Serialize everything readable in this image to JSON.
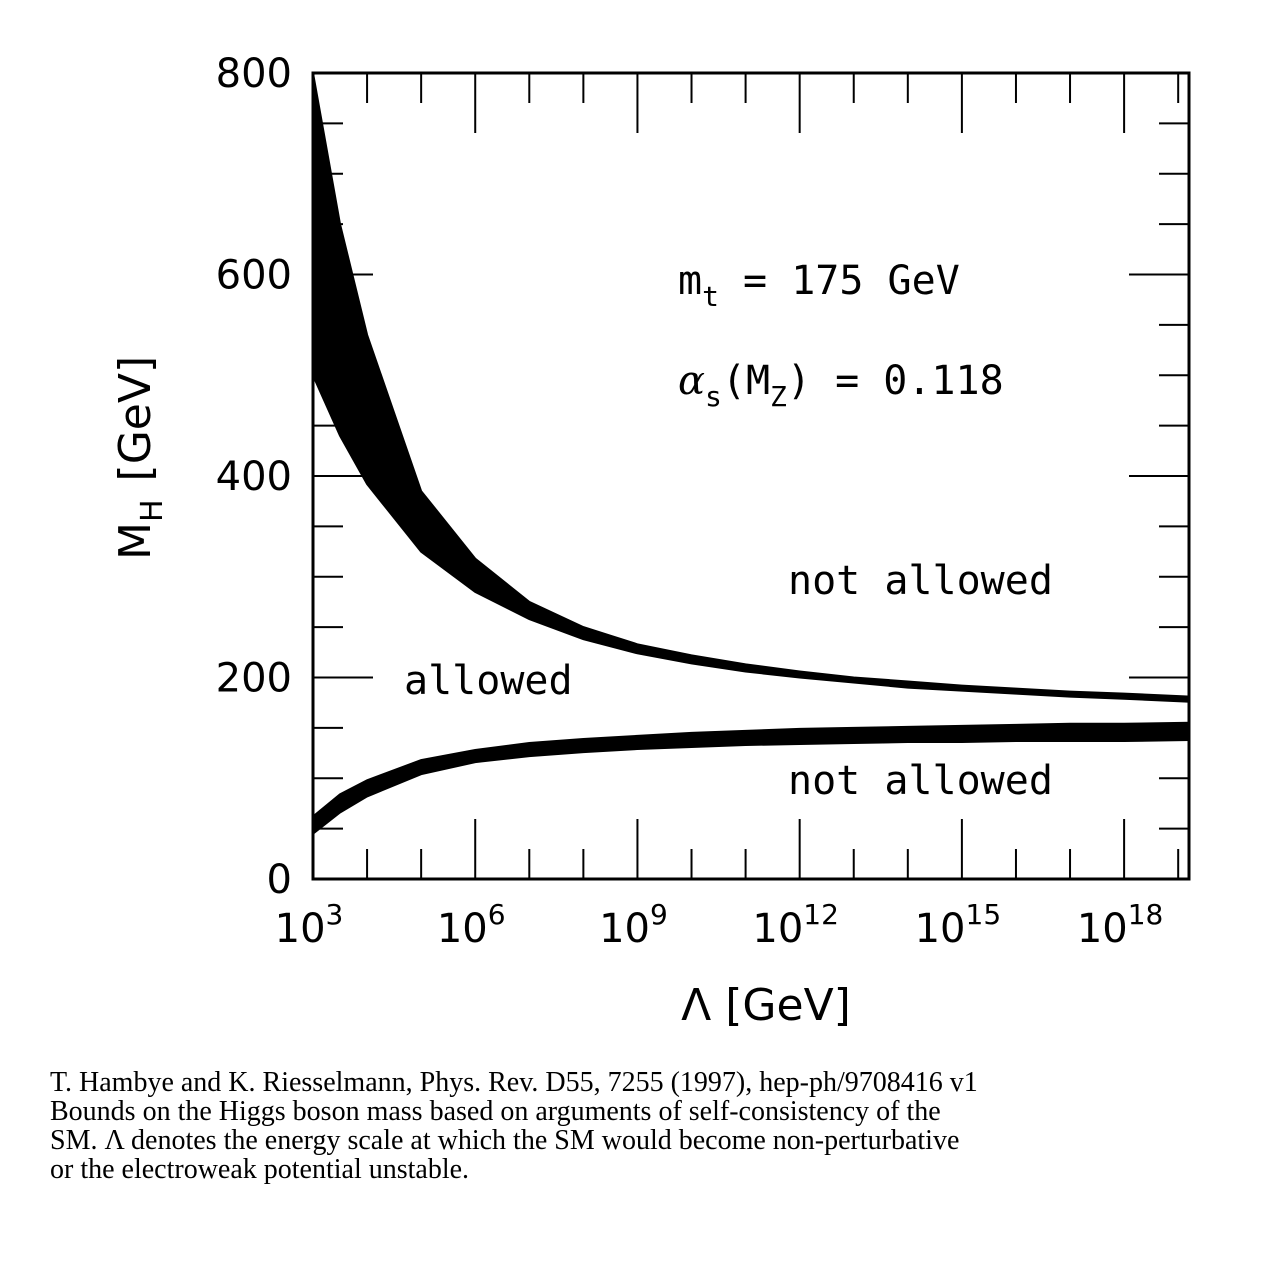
{
  "chart_data": {
    "type": "area",
    "title": "",
    "xlabel": "Λ [GeV]",
    "xscale": "log10",
    "xlim_exp": [
      3,
      19.2
    ],
    "x_tick_exponents": [
      3,
      6,
      9,
      12,
      15,
      18
    ],
    "x_tick_labels": [
      {
        "base": "10",
        "exp": "3"
      },
      {
        "base": "10",
        "exp": "6"
      },
      {
        "base": "10",
        "exp": "9"
      },
      {
        "base": "10",
        "exp": "12"
      },
      {
        "base": "10",
        "exp": "15"
      },
      {
        "base": "10",
        "exp": "18"
      }
    ],
    "ylabel": {
      "main": "M",
      "sub": "H",
      "unit": "[GeV]"
    },
    "ylim": [
      0,
      800
    ],
    "y_ticks": [
      0,
      200,
      400,
      600,
      800
    ],
    "y_tick_labels": [
      "0",
      "200",
      "400",
      "600",
      "800"
    ],
    "series": [
      {
        "name": "upper bound (triviality) band",
        "x_exp": [
          3,
          3.5,
          4,
          5,
          6,
          7,
          8,
          9,
          10,
          11,
          12,
          13,
          14,
          15,
          16,
          17,
          18,
          19.2
        ],
        "y_high": [
          800,
          650,
          540,
          385,
          318,
          275,
          250,
          233,
          222,
          213,
          206,
          200,
          196,
          192,
          189,
          186,
          184,
          181
        ],
        "y_low": [
          500,
          440,
          392,
          325,
          285,
          258,
          238,
          224,
          214,
          206,
          200,
          195,
          190,
          187,
          184,
          181,
          179,
          176
        ]
      },
      {
        "name": "lower bound (vacuum stability) band",
        "x_exp": [
          3,
          3.5,
          4,
          5,
          6,
          7,
          8,
          9,
          10,
          11,
          12,
          13,
          14,
          15,
          16,
          17,
          18,
          19.2
        ],
        "y_high": [
          62,
          84,
          98,
          118,
          128,
          135,
          139,
          142,
          145,
          147,
          149,
          150,
          151,
          152,
          153,
          154,
          154,
          155
        ],
        "y_low": [
          45,
          66,
          82,
          104,
          116,
          122,
          126,
          129,
          131,
          133,
          134,
          135,
          136,
          136,
          137,
          137,
          137,
          138
        ]
      }
    ],
    "annotations": {
      "mt": {
        "var": "m",
        "sub": "t",
        "text": " = 175 GeV"
      },
      "alpha": {
        "var": "α",
        "sub": "s",
        "arg_open": "(M",
        "arg_sub": "Z",
        "text": ") = 0.118"
      },
      "region_upper": "not allowed",
      "region_middle": "allowed",
      "region_lower": "not allowed"
    }
  },
  "caption": [
    "T. Hambye and K. Riesselmann, Phys. Rev. D55, 7255 (1997), hep-ph/9708416 v1",
    "Bounds on the Higgs boson mass based on arguments of self-consistency of the",
    "SM.  Λ denotes the energy scale at which the SM would become non-perturbative",
    "or the electroweak potential unstable."
  ]
}
